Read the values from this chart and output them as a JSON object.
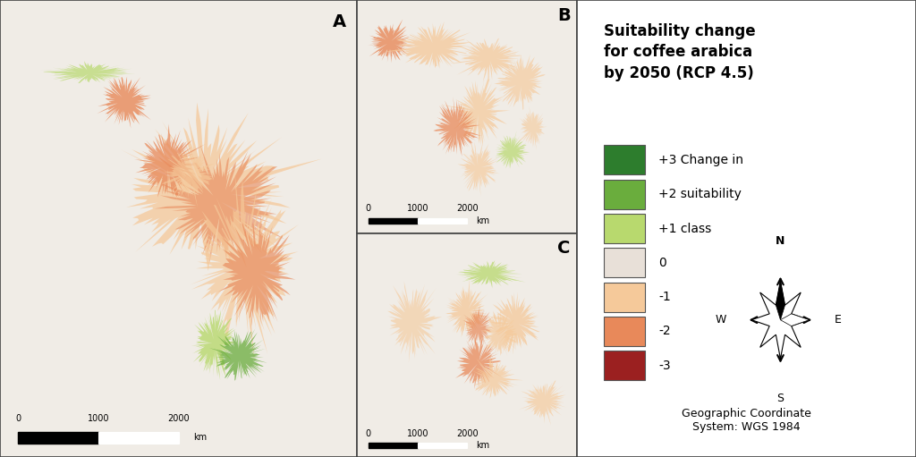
{
  "title": "Suitability change\nfor coffee arabica\nby 2050 (RCP 4.5)",
  "legend_items": [
    {
      "label": "+3 Change in",
      "color": "#2d7d2d"
    },
    {
      "label": "+2 suitability",
      "color": "#6aad3d"
    },
    {
      "label": "+1 class",
      "color": "#b8d96e"
    },
    {
      "label": "0",
      "color": "#e8e0d8"
    },
    {
      "label": "-1",
      "color": "#f5c99a"
    },
    {
      "label": "-2",
      "color": "#e8895a"
    },
    {
      "label": "-3",
      "color": "#9b2020"
    }
  ],
  "panel_labels": [
    "A",
    "B",
    "C"
  ],
  "scale_bar_label": "km",
  "scale_bar_ticks": [
    "0",
    "1000",
    "2000"
  ],
  "compass_labels": {
    "N": "N",
    "S": "S",
    "E": "E",
    "W": "W"
  },
  "geo_coord_text": "Geographic Coordinate\nSystem: WGS 1984",
  "background_color": "#ffffff",
  "map_bg_color": "#f0ece6",
  "ocean_color": "#ffffff",
  "border_color": "#333333",
  "legend_box_color": "#ffffff",
  "legend_title_fontsize": 12,
  "legend_item_fontsize": 10,
  "panel_label_fontsize": 14
}
